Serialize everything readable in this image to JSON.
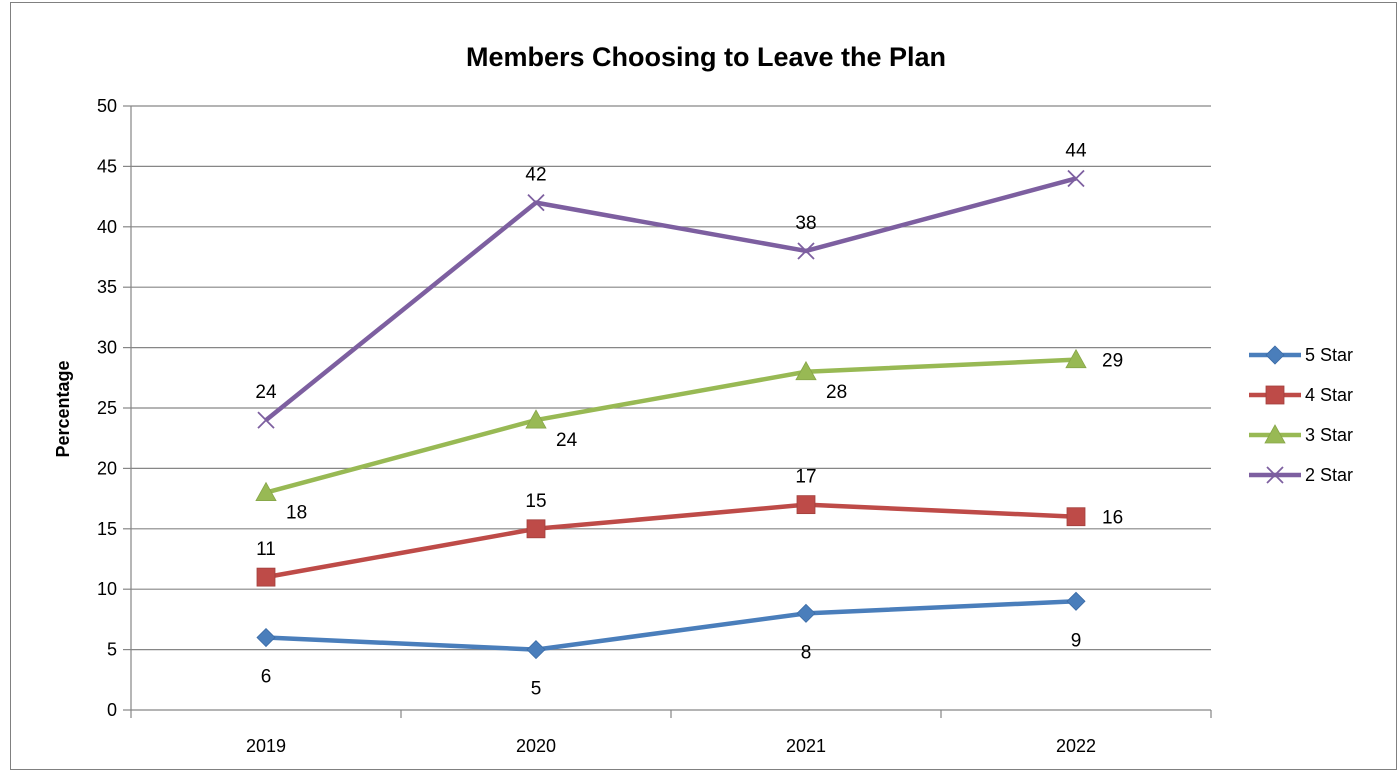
{
  "chart_data": {
    "type": "line",
    "title": "Members Choosing to Leave the Plan",
    "xlabel": "",
    "ylabel": "Percentage",
    "ylim": [
      0,
      50
    ],
    "yticks": [
      0,
      5,
      10,
      15,
      20,
      25,
      30,
      35,
      40,
      45,
      50
    ],
    "categories": [
      "2019",
      "2020",
      "2021",
      "2022"
    ],
    "grid": true,
    "legend_position": "right",
    "series": [
      {
        "name": "5 Star",
        "values": [
          6,
          5,
          8,
          9
        ],
        "color": "#4A7EBB",
        "marker": "diamond",
        "label_pos": [
          "below",
          "below",
          "below",
          "below"
        ]
      },
      {
        "name": "4 Star",
        "values": [
          11,
          15,
          17,
          16
        ],
        "color": "#BE4B48",
        "marker": "square",
        "label_pos": [
          "above",
          "above",
          "above",
          "right"
        ]
      },
      {
        "name": "3 Star",
        "values": [
          18,
          24,
          28,
          29
        ],
        "color": "#98B954",
        "marker": "triangle",
        "label_pos": [
          "right-below",
          "right-below",
          "right-below",
          "right"
        ]
      },
      {
        "name": "2 Star",
        "values": [
          24,
          42,
          38,
          44
        ],
        "color": "#7D5FA0",
        "marker": "x",
        "label_pos": [
          "above",
          "above",
          "above",
          "above"
        ]
      }
    ]
  }
}
